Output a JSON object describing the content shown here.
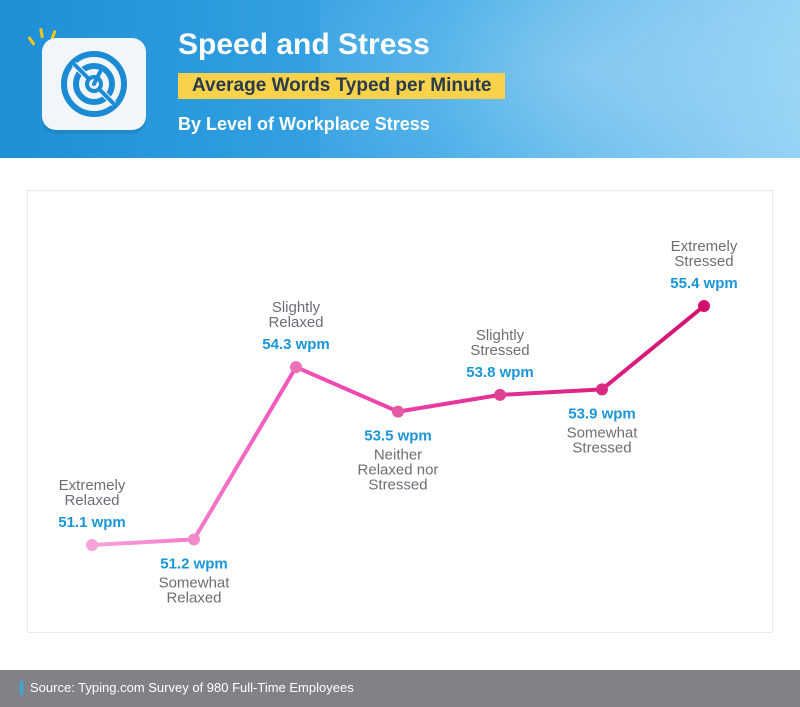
{
  "header": {
    "title": "Speed and Stress",
    "subtitle": "Average Words Typed per Minute",
    "subtitle2": "By Level of Workplace Stress",
    "icon": "speedometer-icon",
    "colors": {
      "header_start": "#1f8fd6",
      "header_end": "#8fd0f3",
      "subtitle_bg": "#f7d24a"
    }
  },
  "chart_data": {
    "type": "line",
    "title": "Speed and Stress",
    "subtitle": "Average Words Typed per Minute",
    "xlabel": "",
    "ylabel": "",
    "categories": [
      [
        "Extremely",
        "Relaxed"
      ],
      [
        "Somewhat",
        "Relaxed"
      ],
      [
        "Slightly",
        "Relaxed"
      ],
      [
        "Neither",
        "Relaxed nor",
        "Stressed"
      ],
      [
        "Slightly",
        "Stressed"
      ],
      [
        "Somewhat",
        "Stressed"
      ],
      [
        "Extremely",
        "Stressed"
      ]
    ],
    "values": [
      51.1,
      51.2,
      54.3,
      53.5,
      53.8,
      53.9,
      55.4
    ],
    "value_labels": [
      "51.1 wpm",
      "51.2 wpm",
      "54.3 wpm",
      "53.5 wpm",
      "53.8 wpm",
      "53.9 wpm",
      "55.4 wpm"
    ],
    "label_position": [
      "above",
      "below",
      "above",
      "below",
      "above",
      "below",
      "above"
    ],
    "grid": false,
    "line_color_start": "#f6a3dc",
    "line_color_end": "#d4106e",
    "value_label_color": "#1a96d8",
    "category_label_color": "#6b6f75"
  },
  "footer": {
    "source": "Source: Typing.com Survey of 980 Full-Time Employees"
  }
}
